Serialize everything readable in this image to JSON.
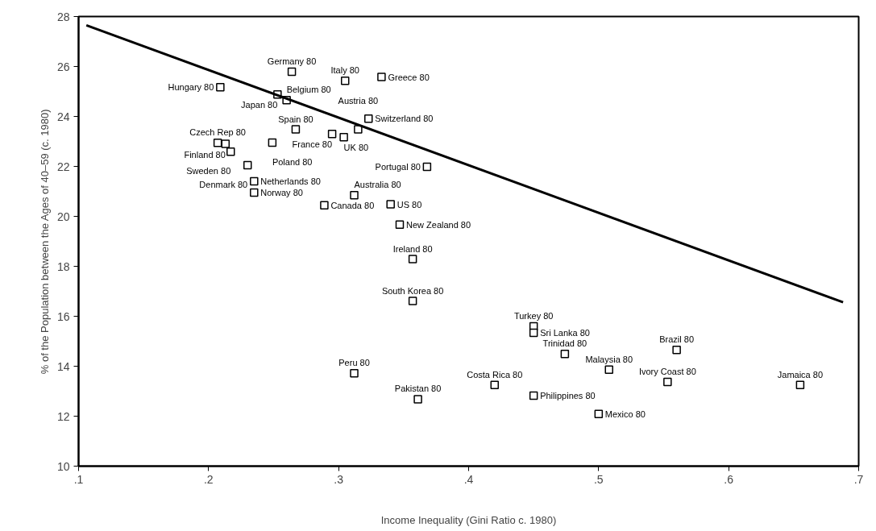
{
  "chart_data": {
    "type": "scatter",
    "xlabel": "Income Inequality (Gini Ratio c. 1980)",
    "ylabel": "% of the Population between the Ages of 40–59 (c. 1980)",
    "xlim": [
      0.1,
      0.7
    ],
    "ylim": [
      10,
      28
    ],
    "xticks": [
      {
        "value": 0.1,
        "label": ".1"
      },
      {
        "value": 0.2,
        "label": ".2"
      },
      {
        "value": 0.3,
        "label": ".3"
      },
      {
        "value": 0.4,
        "label": ".4"
      },
      {
        "value": 0.5,
        "label": ".5"
      },
      {
        "value": 0.6,
        "label": ".6"
      },
      {
        "value": 0.7,
        "label": ".7"
      }
    ],
    "yticks": [
      10,
      12,
      14,
      16,
      18,
      20,
      22,
      24,
      26,
      28
    ],
    "grid": false,
    "marker": "square",
    "series": [
      {
        "color": "#000000",
        "x": [
          0.209,
          0.264,
          0.305,
          0.333,
          0.253,
          0.26,
          0.323,
          0.267,
          0.295,
          0.315,
          0.304,
          0.207,
          0.213,
          0.249,
          0.217,
          0.23,
          0.368,
          0.235,
          0.235,
          0.312,
          0.289,
          0.34,
          0.347,
          0.357,
          0.357,
          0.312,
          0.361,
          0.45,
          0.45,
          0.474,
          0.56,
          0.508,
          0.553,
          0.655,
          0.42,
          0.45,
          0.5
        ],
        "values": [
          25.17,
          25.79,
          25.43,
          25.58,
          24.88,
          24.65,
          23.91,
          23.48,
          23.3,
          23.48,
          23.17,
          22.94,
          22.9,
          22.95,
          22.59,
          22.05,
          21.98,
          21.4,
          20.95,
          20.85,
          20.44,
          20.48,
          19.67,
          18.29,
          16.61,
          13.72,
          12.68,
          15.6,
          15.34,
          14.49,
          14.65,
          13.86,
          13.37,
          13.25,
          13.25,
          12.82,
          12.09
        ]
      },
      {
        "type": "line",
        "color": "#000000",
        "line_style": "solid",
        "marker": "none",
        "x": [
          0.106,
          0.688
        ],
        "values": [
          27.65,
          16.56
        ]
      }
    ],
    "annotations": [
      {
        "text": "Hungary 80",
        "x": 0.209,
        "y": 25.17
      },
      {
        "text": "Germany 80",
        "x": 0.264,
        "y": 25.79
      },
      {
        "text": "Italy 80",
        "x": 0.305,
        "y": 25.43
      },
      {
        "text": "Greece 80",
        "x": 0.333,
        "y": 25.58
      },
      {
        "text": "Japan 80",
        "x": 0.253,
        "y": 24.88
      },
      {
        "text": "Belgium 80",
        "x": 0.26,
        "y": 24.65
      },
      {
        "text": "Switzerland 80",
        "x": 0.323,
        "y": 23.91
      },
      {
        "text": "Spain 80",
        "x": 0.267,
        "y": 23.48
      },
      {
        "text": "France 80",
        "x": 0.295,
        "y": 23.3
      },
      {
        "text": "Austria 80",
        "x": 0.315,
        "y": 23.48
      },
      {
        "text": "UK 80",
        "x": 0.304,
        "y": 23.17
      },
      {
        "text": "Czech Rep 80",
        "x": 0.207,
        "y": 22.94
      },
      {
        "text": "Finland 80",
        "x": 0.213,
        "y": 22.9
      },
      {
        "text": "Poland 80",
        "x": 0.249,
        "y": 22.95
      },
      {
        "text": "Sweden 80",
        "x": 0.217,
        "y": 22.59
      },
      {
        "text": "Denmark 80",
        "x": 0.23,
        "y": 22.05
      },
      {
        "text": "Portugal 80",
        "x": 0.368,
        "y": 21.98
      },
      {
        "text": "Netherlands 80",
        "x": 0.235,
        "y": 21.4
      },
      {
        "text": "Norway 80",
        "x": 0.235,
        "y": 20.95
      },
      {
        "text": "Australia 80",
        "x": 0.312,
        "y": 20.85
      },
      {
        "text": "Canada 80",
        "x": 0.289,
        "y": 20.44
      },
      {
        "text": "US 80",
        "x": 0.34,
        "y": 20.48
      },
      {
        "text": "New Zealand 80",
        "x": 0.347,
        "y": 19.67
      },
      {
        "text": "Ireland 80",
        "x": 0.357,
        "y": 18.29
      },
      {
        "text": "South Korea 80",
        "x": 0.357,
        "y": 16.61
      },
      {
        "text": "Peru 80",
        "x": 0.312,
        "y": 13.72
      },
      {
        "text": "Pakistan 80",
        "x": 0.361,
        "y": 12.68
      },
      {
        "text": "Turkey 80",
        "x": 0.45,
        "y": 15.6
      },
      {
        "text": "Sri Lanka 80",
        "x": 0.45,
        "y": 15.34
      },
      {
        "text": "Trinidad 80",
        "x": 0.474,
        "y": 14.49
      },
      {
        "text": "Brazil 80",
        "x": 0.56,
        "y": 14.65
      },
      {
        "text": "Malaysia 80",
        "x": 0.508,
        "y": 13.86
      },
      {
        "text": "Ivory Coast 80",
        "x": 0.553,
        "y": 13.37
      },
      {
        "text": "Jamaica 80",
        "x": 0.655,
        "y": 13.25
      },
      {
        "text": "Costa Rica 80",
        "x": 0.42,
        "y": 13.25
      },
      {
        "text": "Philippines 80",
        "x": 0.45,
        "y": 12.82
      },
      {
        "text": "Mexico 80",
        "x": 0.5,
        "y": 12.09
      }
    ]
  }
}
